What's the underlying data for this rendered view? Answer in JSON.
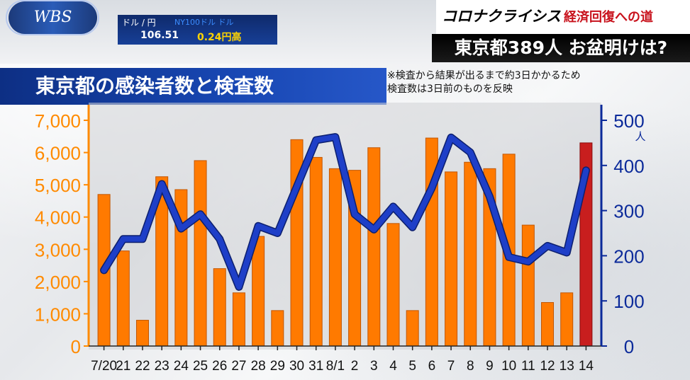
{
  "broadcaster": {
    "logo": "WBS"
  },
  "ticker": {
    "label": "ドル / 円",
    "scroll_text": "NY100ドル  ドル",
    "rate": "106.51",
    "change": "0.24",
    "change_unit": "円高"
  },
  "segment": {
    "corona": "コロナクライシス",
    "series_title": "経済回復への道",
    "headline": "東京都389人 お盆明けは?"
  },
  "colors": {
    "bar": "#ff7a00",
    "bar_highlight": "#c81e1e",
    "line": "#1e3fc8",
    "left_axis": "#ff8a00",
    "right_axis": "#0b2a9a"
  },
  "chart_data": {
    "type": "bar",
    "title": "東京都の感染者数と検査数",
    "note": [
      "※検査から結果が出るまで約3日かかるため",
      "検査数は3日前のものを反映"
    ],
    "categories": [
      "7/20",
      "21",
      "22",
      "23",
      "24",
      "25",
      "26",
      "27",
      "28",
      "29",
      "30",
      "31",
      "8/1",
      "2",
      "3",
      "4",
      "5",
      "6",
      "7",
      "8",
      "9",
      "10",
      "11",
      "12",
      "13",
      "14"
    ],
    "bar_series": {
      "axis": "left",
      "values": [
        4700,
        2950,
        800,
        5250,
        4850,
        5750,
        2400,
        1650,
        3400,
        1100,
        6400,
        5850,
        5500,
        5450,
        6150,
        3800,
        1100,
        6450,
        5400,
        5700,
        5500,
        5950,
        3750,
        1350,
        1650,
        6300
      ],
      "highlight_index": 25
    },
    "line_series": {
      "axis": "right",
      "unit": "人",
      "values": [
        168,
        237,
        237,
        359,
        260,
        292,
        237,
        131,
        266,
        250,
        353,
        456,
        463,
        292,
        258,
        309,
        263,
        350,
        462,
        429,
        331,
        197,
        187,
        222,
        207,
        389
      ]
    },
    "left_axis": {
      "ylim": [
        0,
        7000
      ],
      "ticks": [
        "0",
        "1,000",
        "2,000",
        "3,000",
        "4,000",
        "5,000",
        "6,000",
        "7,000"
      ]
    },
    "right_axis": {
      "ylim": [
        0,
        500
      ],
      "ticks": [
        "0",
        "100",
        "200",
        "300",
        "400",
        "500"
      ]
    },
    "grid": false
  }
}
